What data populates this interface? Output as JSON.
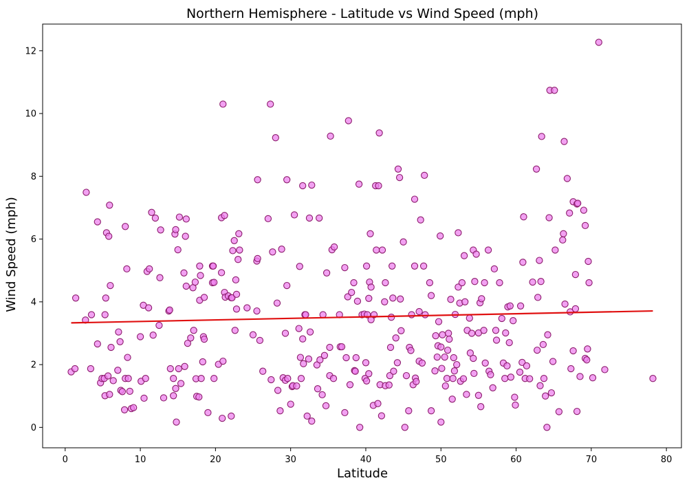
{
  "chart_data": {
    "type": "scatter",
    "title": "Northern Hemisphere - Latitude vs Wind Speed (mph)",
    "xlabel": "Latitude",
    "ylabel": "Wind Speed (mph)",
    "xlim": [
      -3,
      82
    ],
    "ylim": [
      -0.65,
      12.85
    ],
    "xticks": [
      "0",
      "10",
      "20",
      "30",
      "40",
      "50",
      "60",
      "70",
      "80"
    ],
    "yticks": [
      "0",
      "2",
      "4",
      "6",
      "8",
      "10",
      "12"
    ],
    "grid": false,
    "legend": "none",
    "marker_fill": "#ee82ee",
    "marker_edge": "#8b1a6b",
    "regression_color": "#e01010",
    "regression": {
      "x": [
        0.8,
        78.2
      ],
      "y": [
        3.33,
        3.71
      ]
    },
    "points": [
      [
        0.8,
        1.77
      ],
      [
        1.3,
        1.87
      ],
      [
        1.4,
        4.12
      ],
      [
        2.7,
        3.42
      ],
      [
        2.8,
        7.49
      ],
      [
        3.5,
        3.59
      ],
      [
        3.4,
        1.87
      ],
      [
        4.3,
        2.66
      ],
      [
        4.3,
        6.55
      ],
      [
        4.7,
        1.42
      ],
      [
        4.9,
        1.56
      ],
      [
        5.2,
        1.56
      ],
      [
        5.3,
        1.01
      ],
      [
        5.3,
        3.59
      ],
      [
        5.4,
        4.12
      ],
      [
        5.5,
        6.2
      ],
      [
        5.7,
        1.64
      ],
      [
        5.8,
        6.09
      ],
      [
        5.9,
        1.05
      ],
      [
        5.9,
        7.08
      ],
      [
        6.0,
        4.52
      ],
      [
        6.1,
        2.55
      ],
      [
        6.4,
        1.49
      ],
      [
        7.0,
        1.82
      ],
      [
        7.1,
        3.04
      ],
      [
        7.3,
        2.73
      ],
      [
        7.4,
        1.18
      ],
      [
        7.6,
        1.14
      ],
      [
        7.9,
        0.56
      ],
      [
        8.0,
        1.56
      ],
      [
        8.0,
        6.4
      ],
      [
        8.2,
        5.05
      ],
      [
        8.3,
        2.23
      ],
      [
        8.4,
        1.56
      ],
      [
        8.6,
        1.15
      ],
      [
        8.8,
        0.6
      ],
      [
        9.1,
        0.63
      ],
      [
        10.0,
        2.89
      ],
      [
        10.1,
        1.47
      ],
      [
        10.4,
        3.89
      ],
      [
        10.5,
        0.93
      ],
      [
        10.7,
        1.56
      ],
      [
        10.9,
        4.97
      ],
      [
        11.1,
        3.81
      ],
      [
        11.2,
        5.05
      ],
      [
        11.5,
        6.85
      ],
      [
        11.7,
        2.94
      ],
      [
        12.0,
        6.67
      ],
      [
        12.5,
        3.25
      ],
      [
        12.6,
        4.77
      ],
      [
        12.7,
        6.29
      ],
      [
        13.1,
        0.94
      ],
      [
        13.8,
        3.71
      ],
      [
        13.9,
        3.74
      ],
      [
        14.0,
        1.87
      ],
      [
        14.4,
        1.56
      ],
      [
        14.4,
        1.01
      ],
      [
        14.6,
        6.16
      ],
      [
        14.7,
        6.3
      ],
      [
        14.7,
        1.24
      ],
      [
        14.8,
        0.17
      ],
      [
        15.0,
        5.66
      ],
      [
        15.1,
        1.87
      ],
      [
        15.2,
        6.7
      ],
      [
        15.4,
        1.4
      ],
      [
        15.8,
        4.92
      ],
      [
        15.9,
        1.94
      ],
      [
        16.0,
        6.09
      ],
      [
        16.1,
        4.5
      ],
      [
        16.1,
        6.64
      ],
      [
        16.3,
        2.68
      ],
      [
        16.7,
        2.85
      ],
      [
        17.0,
        4.45
      ],
      [
        17.1,
        3.09
      ],
      [
        17.3,
        4.63
      ],
      [
        17.4,
        1.55
      ],
      [
        17.5,
        0.99
      ],
      [
        17.8,
        0.97
      ],
      [
        17.9,
        4.05
      ],
      [
        17.9,
        5.14
      ],
      [
        18.0,
        4.84
      ],
      [
        18.1,
        1.56
      ],
      [
        18.3,
        2.09
      ],
      [
        18.4,
        2.89
      ],
      [
        18.5,
        4.14
      ],
      [
        18.5,
        2.81
      ],
      [
        19.0,
        0.47
      ],
      [
        19.6,
        5.14
      ],
      [
        19.6,
        4.61
      ],
      [
        19.7,
        5.14
      ],
      [
        19.8,
        4.62
      ],
      [
        19.8,
        1.56
      ],
      [
        20.4,
        2.01
      ],
      [
        20.8,
        4.93
      ],
      [
        20.8,
        6.68
      ],
      [
        20.9,
        0.29
      ],
      [
        21.0,
        10.3
      ],
      [
        21.0,
        2.11
      ],
      [
        21.2,
        6.75
      ],
      [
        21.2,
        4.3
      ],
      [
        21.3,
        4.15
      ],
      [
        21.7,
        4.19
      ],
      [
        22.1,
        4.13
      ],
      [
        22.1,
        0.36
      ],
      [
        22.2,
        4.13
      ],
      [
        22.3,
        5.63
      ],
      [
        22.5,
        5.95
      ],
      [
        22.6,
        3.09
      ],
      [
        22.7,
        4.7
      ],
      [
        22.8,
        4.24
      ],
      [
        22.8,
        3.77
      ],
      [
        23.0,
        5.35
      ],
      [
        23.1,
        6.17
      ],
      [
        23.2,
        5.65
      ],
      [
        24.2,
        3.81
      ],
      [
        25.0,
        2.95
      ],
      [
        25.5,
        3.71
      ],
      [
        25.5,
        5.3
      ],
      [
        25.6,
        5.38
      ],
      [
        25.6,
        7.89
      ],
      [
        25.9,
        2.77
      ],
      [
        26.3,
        1.79
      ],
      [
        27.0,
        6.65
      ],
      [
        27.3,
        10.3
      ],
      [
        27.4,
        1.52
      ],
      [
        27.6,
        5.59
      ],
      [
        28.0,
        9.23
      ],
      [
        28.2,
        3.96
      ],
      [
        28.3,
        1.18
      ],
      [
        28.6,
        0.53
      ],
      [
        28.8,
        5.68
      ],
      [
        29.0,
        1.58
      ],
      [
        29.3,
        3.0
      ],
      [
        29.3,
        1.5
      ],
      [
        29.5,
        7.89
      ],
      [
        29.5,
        4.52
      ],
      [
        29.6,
        1.56
      ],
      [
        30.0,
        0.74
      ],
      [
        30.2,
        1.3
      ],
      [
        30.3,
        1.33
      ],
      [
        30.5,
        6.77
      ],
      [
        30.8,
        1.32
      ],
      [
        31.1,
        3.15
      ],
      [
        31.2,
        5.13
      ],
      [
        31.3,
        2.23
      ],
      [
        31.4,
        1.56
      ],
      [
        31.6,
        7.7
      ],
      [
        31.7,
        2.03
      ],
      [
        31.6,
        2.82
      ],
      [
        31.9,
        3.59
      ],
      [
        32.0,
        3.59
      ],
      [
        32.2,
        0.36
      ],
      [
        32.4,
        2.18
      ],
      [
        32.5,
        6.67
      ],
      [
        32.6,
        3.04
      ],
      [
        32.8,
        7.72
      ],
      [
        32.8,
        0.2
      ],
      [
        33.5,
        1.99
      ],
      [
        33.6,
        1.23
      ],
      [
        33.8,
        6.67
      ],
      [
        33.9,
        2.15
      ],
      [
        34.2,
        1.04
      ],
      [
        34.3,
        3.59
      ],
      [
        34.5,
        2.29
      ],
      [
        34.7,
        0.69
      ],
      [
        34.8,
        4.92
      ],
      [
        35.2,
        2.55
      ],
      [
        35.2,
        1.65
      ],
      [
        35.3,
        9.28
      ],
      [
        35.5,
        5.66
      ],
      [
        35.7,
        1.56
      ],
      [
        35.8,
        5.75
      ],
      [
        36.5,
        3.59
      ],
      [
        36.6,
        2.57
      ],
      [
        36.8,
        2.57
      ],
      [
        37.2,
        5.09
      ],
      [
        37.2,
        0.47
      ],
      [
        37.4,
        2.22
      ],
      [
        37.6,
        4.16
      ],
      [
        37.7,
        9.77
      ],
      [
        37.9,
        1.36
      ],
      [
        38.1,
        4.3
      ],
      [
        38.4,
        4.61
      ],
      [
        38.5,
        1.81
      ],
      [
        38.6,
        1.79
      ],
      [
        38.7,
        2.22
      ],
      [
        38.9,
        4.02
      ],
      [
        39.1,
        7.75
      ],
      [
        39.2,
        0.0
      ],
      [
        39.5,
        3.59
      ],
      [
        39.8,
        3.61
      ],
      [
        39.9,
        1.56
      ],
      [
        40.0,
        2.06
      ],
      [
        40.1,
        1.48
      ],
      [
        40.1,
        5.14
      ],
      [
        40.2,
        3.59
      ],
      [
        40.4,
        4.11
      ],
      [
        40.4,
        1.71
      ],
      [
        40.5,
        4.63
      ],
      [
        40.7,
        3.43
      ],
      [
        40.7,
        4.47
      ],
      [
        40.6,
        6.17
      ],
      [
        41.0,
        0.7
      ],
      [
        41.1,
        3.59
      ],
      [
        41.3,
        7.7
      ],
      [
        41.4,
        5.65
      ],
      [
        41.6,
        0.76
      ],
      [
        41.7,
        7.7
      ],
      [
        41.8,
        9.38
      ],
      [
        41.9,
        1.36
      ],
      [
        42.1,
        0.37
      ],
      [
        42.2,
        5.65
      ],
      [
        42.5,
        4.0
      ],
      [
        42.6,
        4.61
      ],
      [
        42.6,
        1.33
      ],
      [
        43.2,
        1.65
      ],
      [
        43.1,
        1.35
      ],
      [
        43.3,
        2.55
      ],
      [
        43.4,
        3.51
      ],
      [
        43.5,
        5.14
      ],
      [
        43.6,
        4.12
      ],
      [
        43.7,
        1.79
      ],
      [
        44.0,
        2.85
      ],
      [
        44.2,
        2.06
      ],
      [
        44.3,
        8.23
      ],
      [
        44.5,
        7.96
      ],
      [
        44.6,
        4.09
      ],
      [
        44.7,
        3.08
      ],
      [
        45.0,
        5.91
      ],
      [
        45.2,
        0.0
      ],
      [
        45.4,
        1.65
      ],
      [
        45.7,
        0.53
      ],
      [
        45.8,
        2.55
      ],
      [
        46.0,
        2.45
      ],
      [
        46.1,
        3.59
      ],
      [
        46.3,
        1.36
      ],
      [
        46.5,
        5.14
      ],
      [
        46.5,
        7.27
      ],
      [
        46.6,
        1.57
      ],
      [
        46.7,
        1.46
      ],
      [
        47.1,
        2.11
      ],
      [
        47.1,
        3.69
      ],
      [
        47.3,
        6.61
      ],
      [
        47.5,
        2.05
      ],
      [
        47.7,
        5.14
      ],
      [
        47.8,
        8.03
      ],
      [
        47.9,
        3.59
      ],
      [
        48.5,
        4.61
      ],
      [
        48.7,
        4.2
      ],
      [
        48.7,
        0.53
      ],
      [
        49.2,
        1.8
      ],
      [
        49.3,
        2.92
      ],
      [
        49.5,
        2.24
      ],
      [
        49.6,
        2.6
      ],
      [
        49.7,
        3.37
      ],
      [
        49.9,
        6.1
      ],
      [
        50.0,
        2.56
      ],
      [
        50.0,
        0.17
      ],
      [
        50.1,
        1.88
      ],
      [
        50.2,
        2.95
      ],
      [
        50.5,
        2.24
      ],
      [
        50.6,
        1.32
      ],
      [
        50.8,
        1.56
      ],
      [
        50.9,
        2.46
      ],
      [
        51.0,
        3.0
      ],
      [
        51.1,
        2.81
      ],
      [
        51.3,
        4.08
      ],
      [
        51.5,
        0.9
      ],
      [
        51.6,
        1.56
      ],
      [
        51.7,
        2.22
      ],
      [
        51.8,
        1.8
      ],
      [
        51.9,
        3.6
      ],
      [
        52.1,
        2.0
      ],
      [
        52.3,
        6.2
      ],
      [
        52.3,
        4.47
      ],
      [
        52.5,
        3.96
      ],
      [
        52.6,
        1.47
      ],
      [
        52.8,
        4.61
      ],
      [
        53.0,
        1.55
      ],
      [
        53.1,
        5.47
      ],
      [
        53.2,
        4.0
      ],
      [
        53.4,
        1.05
      ],
      [
        53.5,
        3.09
      ],
      [
        53.8,
        3.48
      ],
      [
        53.9,
        2.37
      ],
      [
        54.1,
        3.0
      ],
      [
        54.3,
        5.65
      ],
      [
        54.3,
        2.2
      ],
      [
        54.4,
        1.72
      ],
      [
        54.5,
        4.65
      ],
      [
        54.7,
        5.52
      ],
      [
        55.0,
        1.02
      ],
      [
        55.0,
        3.01
      ],
      [
        55.2,
        3.97
      ],
      [
        55.3,
        0.66
      ],
      [
        55.4,
        4.1
      ],
      [
        55.7,
        3.09
      ],
      [
        55.8,
        4.61
      ],
      [
        55.9,
        2.05
      ],
      [
        56.3,
        5.65
      ],
      [
        56.4,
        1.79
      ],
      [
        56.6,
        1.68
      ],
      [
        56.9,
        1.26
      ],
      [
        57.1,
        5.05
      ],
      [
        57.3,
        3.09
      ],
      [
        57.4,
        2.78
      ],
      [
        57.8,
        4.61
      ],
      [
        58.1,
        3.47
      ],
      [
        58.3,
        2.05
      ],
      [
        58.5,
        1.56
      ],
      [
        58.6,
        3.01
      ],
      [
        58.8,
        1.96
      ],
      [
        58.9,
        3.84
      ],
      [
        59.1,
        2.7
      ],
      [
        59.2,
        3.87
      ],
      [
        59.3,
        1.6
      ],
      [
        59.6,
        3.4
      ],
      [
        59.8,
        0.96
      ],
      [
        59.9,
        0.71
      ],
      [
        60.5,
        1.76
      ],
      [
        60.6,
        3.87
      ],
      [
        60.8,
        2.07
      ],
      [
        60.9,
        5.26
      ],
      [
        61.0,
        6.71
      ],
      [
        61.2,
        1.56
      ],
      [
        61.4,
        1.96
      ],
      [
        61.8,
        1.55
      ],
      [
        62.2,
        4.63
      ],
      [
        62.7,
        8.23
      ],
      [
        62.8,
        2.46
      ],
      [
        62.9,
        4.14
      ],
      [
        63.1,
        5.32
      ],
      [
        63.2,
        1.33
      ],
      [
        63.3,
        4.65
      ],
      [
        63.4,
        9.27
      ],
      [
        63.6,
        2.64
      ],
      [
        63.7,
        1.56
      ],
      [
        63.9,
        1.0
      ],
      [
        64.1,
        0.0
      ],
      [
        64.2,
        2.95
      ],
      [
        64.4,
        6.68
      ],
      [
        64.5,
        10.74
      ],
      [
        64.7,
        1.1
      ],
      [
        64.9,
        2.1
      ],
      [
        65.1,
        10.74
      ],
      [
        65.2,
        5.65
      ],
      [
        65.7,
        0.5
      ],
      [
        66.2,
        5.97
      ],
      [
        66.3,
        6.17
      ],
      [
        66.4,
        9.11
      ],
      [
        66.5,
        3.93
      ],
      [
        66.8,
        7.93
      ],
      [
        67.1,
        6.83
      ],
      [
        67.2,
        3.68
      ],
      [
        67.3,
        1.87
      ],
      [
        67.6,
        2.44
      ],
      [
        67.6,
        7.19
      ],
      [
        67.9,
        3.78
      ],
      [
        67.9,
        4.87
      ],
      [
        68.1,
        0.51
      ],
      [
        68.1,
        7.12
      ],
      [
        68.2,
        7.14
      ],
      [
        68.5,
        1.62
      ],
      [
        69.0,
        6.92
      ],
      [
        69.2,
        2.2
      ],
      [
        69.2,
        6.43
      ],
      [
        69.4,
        2.15
      ],
      [
        69.5,
        2.5
      ],
      [
        69.6,
        5.29
      ],
      [
        69.7,
        4.61
      ],
      [
        70.2,
        1.58
      ],
      [
        71.0,
        12.27
      ],
      [
        71.8,
        1.84
      ],
      [
        78.2,
        1.56
      ]
    ]
  }
}
